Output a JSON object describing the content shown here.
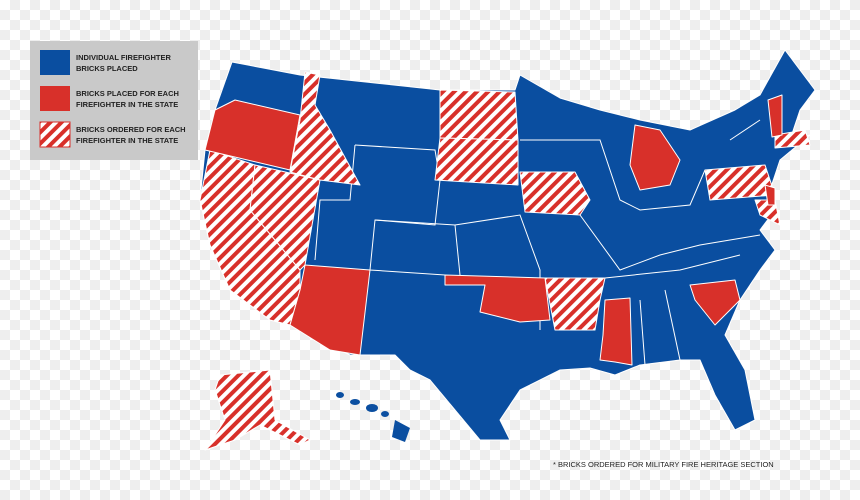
{
  "legend": {
    "items": [
      {
        "lines": [
          "INDIVIDUAL FIREFIGHTER",
          "BRICKS PLACED"
        ]
      },
      {
        "lines": [
          "BRICKS PLACED FOR EACH",
          "FIREFIGHTER IN THE STATE"
        ]
      },
      {
        "lines": [
          "BRICKS ORDERED FOR EACH",
          "FIREFIGHTER IN THE STATE"
        ]
      }
    ]
  },
  "footnote": "* BRICKS ORDERED FOR MILITARY FIRE HERITAGE SECTION"
}
